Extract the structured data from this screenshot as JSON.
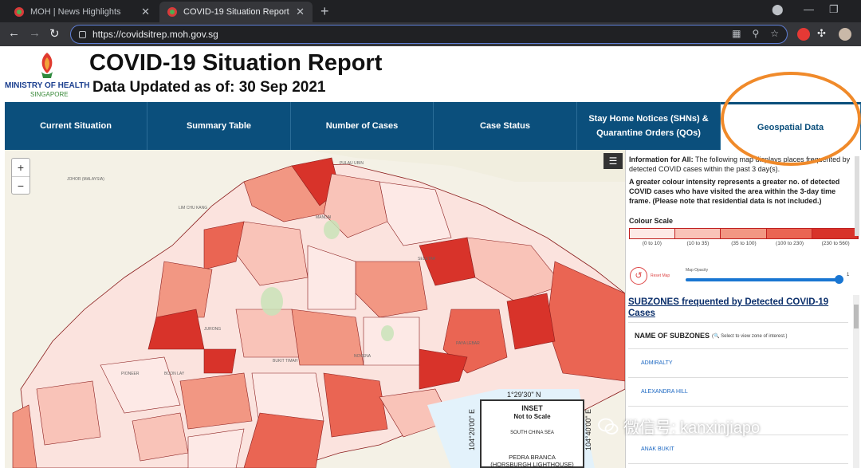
{
  "browser": {
    "tabs": [
      {
        "title": "MOH | News Highlights"
      },
      {
        "title": "COVID-19 Situation Report"
      }
    ],
    "url": "https://covidsitrep.moh.gov.sg"
  },
  "header": {
    "ministry": "MINISTRY OF HEALTH",
    "country": "SINGAPORE",
    "title": "COVID-19 Situation Report",
    "updated": "Data Updated as of: 30 Sep 2021"
  },
  "nav": {
    "tabs": [
      {
        "label": "Current Situation"
      },
      {
        "label": "Summary Table"
      },
      {
        "label": "Number of Cases"
      },
      {
        "label": "Case Status"
      },
      {
        "label": "Stay Home Notices (SHNs) & Quarantine Orders (QOs)"
      },
      {
        "label": "Geospatial Data"
      }
    ]
  },
  "map": {
    "zoom_in": "+",
    "zoom_out": "−",
    "menu": "☰",
    "labels": {
      "johor": "JOHOR (MALAYSIA)",
      "pulau_ubin": "PULAU UBIN",
      "lim_chu_kang": "LIM CHU KANG",
      "mandai": "MANDAI",
      "seletar": "SELETAR",
      "paya_lebar": "PAYA LEBAR",
      "novena": "NOVENA",
      "pioneer": "PIONEER",
      "boon_lay": "BOON LAY",
      "bukit_timah": "BUKIT TIMAH",
      "jurong": "JURONG"
    },
    "inset": {
      "coord_top": "1°29'30\" N",
      "coord_left": "104°20'00\" E",
      "coord_right": "104°40'00\" E",
      "title": "INSET",
      "subtitle": "Not to Scale",
      "sea": "SOUTH CHINA SEA",
      "place1": "PEDRA BRANCA",
      "place2": "(HORSBURGH LIGHTHOUSE)"
    }
  },
  "panel": {
    "info_bold": "Information for All:",
    "info_text": "The following map displays places frequented by detected COVID cases within the past 3 day(s).",
    "info2": "A greater colour intensity represents a greater no. of detected COVID cases who have visited the area within the 3-day time frame. (Please note that residential data is not included.)",
    "scale_title": "Colour Scale",
    "scale_colors": [
      "#fde9e6",
      "#f9c3b8",
      "#f29783",
      "#ea6553",
      "#d8332a"
    ],
    "scale_labels": [
      "(0 to 10)",
      "(10 to 35)",
      "(35 to 100)",
      "(100 to 230)",
      "(230 to 560)"
    ],
    "reset_label": "Reset Map",
    "opacity_label": "Map Opacity",
    "opacity_value": "1",
    "opacity_fraction": 1.0,
    "subzones_title": "SUBZONES frequented by Detected COVID-19 Cases",
    "table_header": "NAME OF SUBZONES",
    "table_hint": "Select to view zone of interest.)",
    "subzones": [
      "ADMIRALTY",
      "ALEXANDRA HILL",
      "",
      "ANAK BUKIT"
    ]
  },
  "watermark": "微信号: kanxinjiapo"
}
